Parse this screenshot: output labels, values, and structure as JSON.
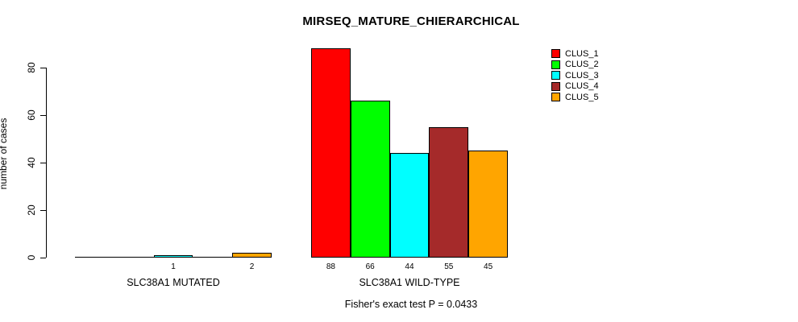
{
  "page": {
    "background": "#ffffff",
    "foreground": "#000000"
  },
  "chart_data": {
    "type": "bar",
    "title": "MIRSEQ_MATURE_CHIERARCHICAL",
    "ylabel": "number of cases",
    "xlabel": "",
    "footnote": "Fisher's exact test P = 0.0433",
    "yticks": [
      0,
      20,
      40,
      60,
      80
    ],
    "ylim": [
      0,
      88
    ],
    "grid": false,
    "legend_position": "top-right",
    "series": [
      {
        "name": "CLUS_1",
        "color": "#FF0000"
      },
      {
        "name": "CLUS_2",
        "color": "#00FF00"
      },
      {
        "name": "CLUS_3",
        "color": "#00FFFF"
      },
      {
        "name": "CLUS_4",
        "color": "#A52A2A"
      },
      {
        "name": "CLUS_5",
        "color": "#FFA500"
      }
    ],
    "categories": [
      "SLC38A1 MUTATED",
      "SLC38A1 WILD-TYPE"
    ],
    "groups": [
      {
        "label": "SLC38A1 MUTATED",
        "values": [
          0,
          0,
          1,
          0,
          2
        ]
      },
      {
        "label": "SLC38A1 WILD-TYPE",
        "values": [
          88,
          66,
          44,
          55,
          45
        ]
      }
    ],
    "bar_value_labels": [
      [
        "",
        "",
        "1",
        "",
        "2"
      ],
      [
        "88",
        "66",
        "44",
        "55",
        "45"
      ]
    ]
  }
}
